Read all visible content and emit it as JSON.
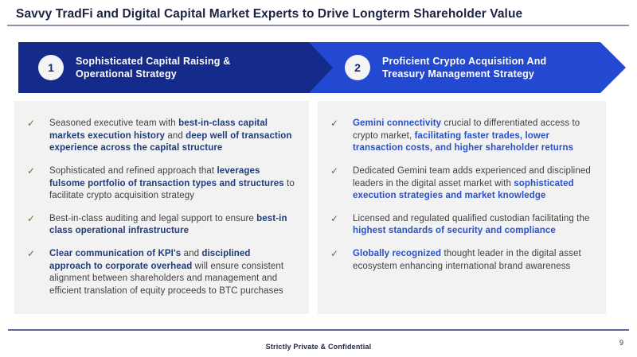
{
  "title": "Savvy TradFi and Digital Capital Market Experts to Drive Longterm Shareholder Value",
  "colors": {
    "banner1_blue": "#152b8c",
    "banner2_blue": "#2348d2",
    "left_bold_navy": "#1f3c78",
    "right_bold_blue": "#2a50c8",
    "check_green": "#477d2e",
    "panel_gray": "#f2f2f2",
    "title_navy": "#1d2342"
  },
  "icons": {
    "check": "✓"
  },
  "banners": [
    {
      "number": "1",
      "title": "Sophisticated Capital Raising &\nOperational Strategy",
      "color": "#152b8c"
    },
    {
      "number": "2",
      "title": "Proficient Crypto Acquisition And\nTreasury Management Strategy",
      "color": "#2348d2"
    }
  ],
  "columns": [
    {
      "bold_color": "#1f3c78",
      "bullets": [
        [
          {
            "text": "Seasoned executive team with ",
            "bold": false
          },
          {
            "text": "best-in-class capital markets execution history",
            "bold": true
          },
          {
            "text": " and ",
            "bold": false
          },
          {
            "text": "deep well of transaction experience across the capital structure",
            "bold": true
          }
        ],
        [
          {
            "text": "Sophisticated and refined approach that ",
            "bold": false
          },
          {
            "text": "leverages fulsome portfolio of transaction types and structures",
            "bold": true
          },
          {
            "text": " to facilitate crypto acquisition strategy",
            "bold": false
          }
        ],
        [
          {
            "text": "Best-in-class auditing and legal support to ensure ",
            "bold": false
          },
          {
            "text": "best-in class operational infrastructure",
            "bold": true
          }
        ],
        [
          {
            "text": "Clear communication of KPI's",
            "bold": true
          },
          {
            "text": " and ",
            "bold": false
          },
          {
            "text": "disciplined approach to corporate overhead",
            "bold": true
          },
          {
            "text": " will ensure consistent alignment between shareholders and management and efficient translation of equity proceeds to BTC purchases",
            "bold": false
          }
        ]
      ]
    },
    {
      "bold_color": "#2a50c8",
      "bullets": [
        [
          {
            "text": "Gemini connectivity",
            "bold": true
          },
          {
            "text": " crucial to differentiated access to crypto market, ",
            "bold": false
          },
          {
            "text": "facilitating faster trades, lower transaction costs, and higher shareholder returns",
            "bold": true
          }
        ],
        [
          {
            "text": "Dedicated Gemini team adds experienced and disciplined leaders in the digital asset market with ",
            "bold": false
          },
          {
            "text": "sophisticated execution strategies and market knowledge",
            "bold": true
          }
        ],
        [
          {
            "text": "Licensed and regulated qualified custodian facilitating the ",
            "bold": false
          },
          {
            "text": "highest standards of security and compliance",
            "bold": true
          }
        ],
        [
          {
            "text": "Globally recognized",
            "bold": true
          },
          {
            "text": " thought leader in the digital asset ecosystem enhancing international brand awareness",
            "bold": false
          }
        ]
      ]
    }
  ],
  "footer": {
    "confidential": "Strictly Private & Confidential",
    "page_number": "9"
  }
}
